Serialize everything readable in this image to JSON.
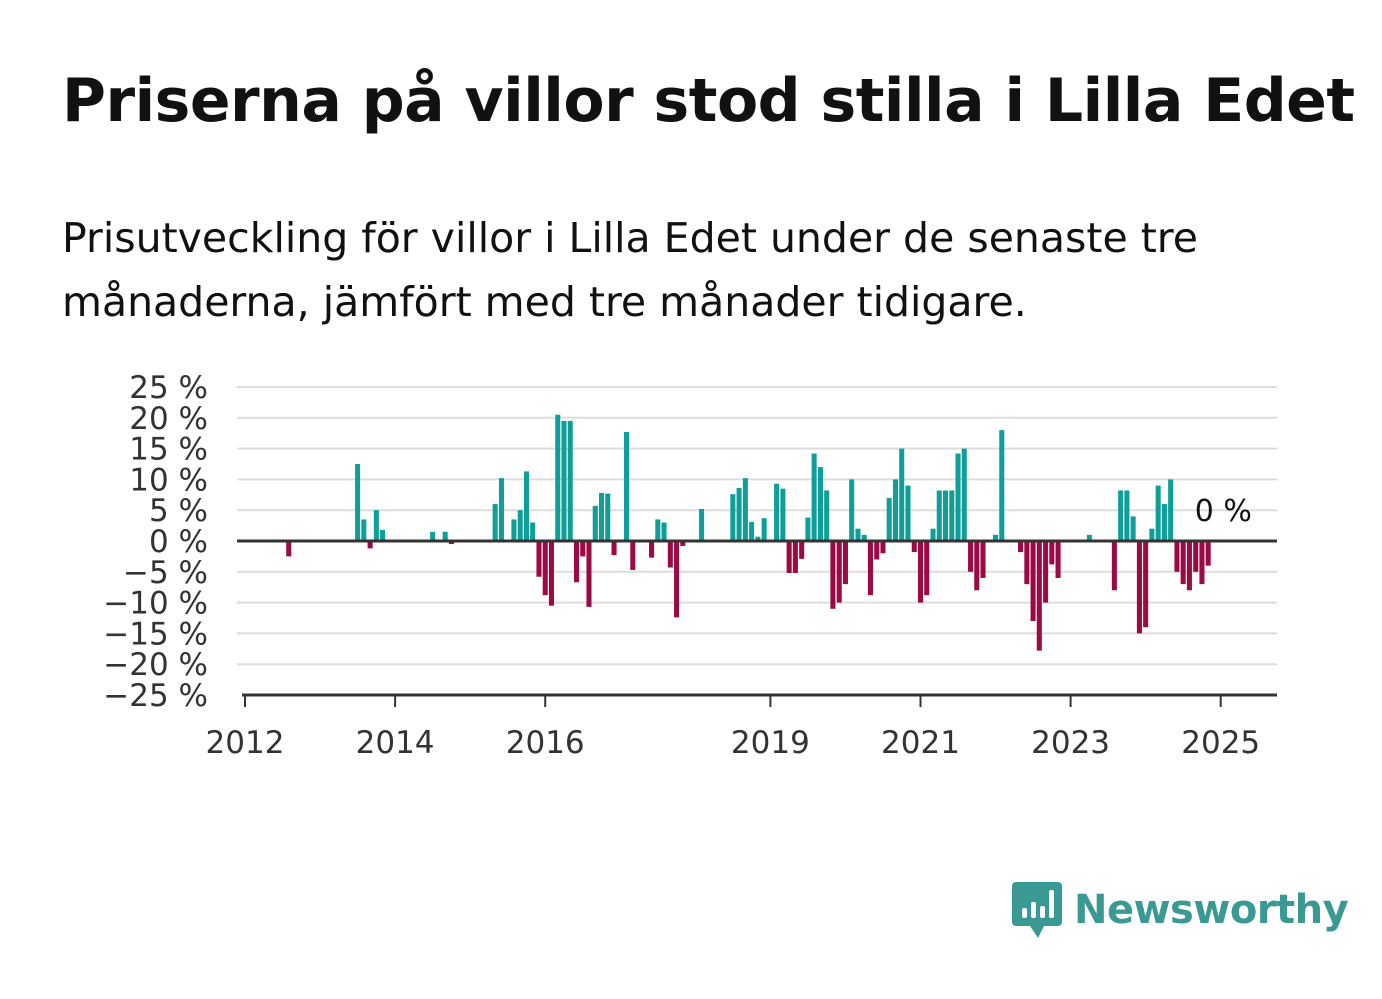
{
  "title": "Priserna på villor stod stilla i Lilla Edet",
  "subtitle": "Prisutveckling för villor i Lilla Edet under de senaste tre månaderna, jämfört med tre månader tidigare.",
  "brand": "Newsworthy",
  "colors": {
    "positive": "#109e98",
    "negative": "#9b0a45",
    "grid": "#dddddd",
    "axis": "#333333",
    "brand": "#3a9a93"
  },
  "chart_data": {
    "type": "bar",
    "ylim": [
      -25,
      25
    ],
    "y_ticks": [
      25,
      20,
      15,
      10,
      5,
      0,
      -5,
      -10,
      -15,
      -20,
      -25
    ],
    "y_tick_labels": [
      "25 %",
      "20 %",
      "15 %",
      "10 %",
      "5 %",
      "0 %",
      "−5 %",
      "−10 %",
      "−15 %",
      "−20 %",
      "−25 %"
    ],
    "x_range": [
      2012,
      2025.75
    ],
    "x_ticks": [
      2012,
      2014,
      2016,
      2019,
      2021,
      2023,
      2025
    ],
    "x_tick_labels": [
      "2012",
      "2014",
      "2016",
      "2019",
      "2021",
      "2023",
      "2025"
    ],
    "last_value_label": "0 %",
    "grid": true,
    "x": [
      2012.583,
      2013.5,
      2013.583,
      2013.667,
      2013.75,
      2013.833,
      2014.5,
      2014.667,
      2014.75,
      2015.333,
      2015.417,
      2015.583,
      2015.667,
      2015.75,
      2015.833,
      2015.917,
      2016.0,
      2016.083,
      2016.167,
      2016.25,
      2016.333,
      2016.417,
      2016.5,
      2016.583,
      2016.667,
      2016.75,
      2016.833,
      2016.917,
      2017.083,
      2017.167,
      2017.417,
      2017.5,
      2017.583,
      2017.667,
      2017.75,
      2017.833,
      2018.083,
      2018.5,
      2018.583,
      2018.667,
      2018.75,
      2018.833,
      2018.917,
      2019.083,
      2019.167,
      2019.25,
      2019.333,
      2019.417,
      2019.5,
      2019.583,
      2019.667,
      2019.75,
      2019.833,
      2019.917,
      2020.0,
      2020.083,
      2020.167,
      2020.25,
      2020.333,
      2020.417,
      2020.5,
      2020.583,
      2020.667,
      2020.75,
      2020.833,
      2020.917,
      2021.0,
      2021.083,
      2021.167,
      2021.25,
      2021.333,
      2021.417,
      2021.5,
      2021.583,
      2021.667,
      2021.75,
      2021.833,
      2022.0,
      2022.083,
      2022.333,
      2022.417,
      2022.5,
      2022.583,
      2022.667,
      2022.75,
      2022.833,
      2023.25,
      2023.583,
      2023.667,
      2023.75,
      2023.833,
      2023.917,
      2024.0,
      2024.083,
      2024.167,
      2024.25,
      2024.333,
      2024.417,
      2024.5,
      2024.583,
      2024.667,
      2024.75,
      2024.833,
      2024.917,
      2025.0
    ],
    "values": [
      -2.5,
      12.5,
      3.5,
      -1.2,
      5.0,
      1.8,
      1.5,
      1.5,
      -0.5,
      6.0,
      10.2,
      3.5,
      5.0,
      11.3,
      3.0,
      -5.8,
      -8.8,
      -10.5,
      20.5,
      19.5,
      19.5,
      -6.7,
      -2.5,
      -10.7,
      5.7,
      7.8,
      7.7,
      -2.3,
      17.7,
      -4.7,
      -2.7,
      3.5,
      3.0,
      -4.3,
      -12.4,
      -0.8,
      5.2,
      7.6,
      8.6,
      10.2,
      3.1,
      0.7,
      3.7,
      9.3,
      8.5,
      -5.2,
      -5.2,
      -2.9,
      3.8,
      14.2,
      12.0,
      8.2,
      -11.0,
      -10.0,
      -7.0,
      10.0,
      2.0,
      1.0,
      -8.8,
      -3.0,
      -2.0,
      7.0,
      10.0,
      15.0,
      9.0,
      -1.8,
      -10.0,
      -8.8,
      2.0,
      8.2,
      8.2,
      8.2,
      14.2,
      15.0,
      -5.0,
      -8.0,
      -6.0,
      1.0,
      18.0,
      -1.8,
      -7.0,
      -13.0,
      -17.8,
      -10.0,
      -3.8,
      -6.0,
      1.0,
      -8.0,
      8.2,
      8.2,
      4.0,
      -15.0,
      -14.0,
      2.0,
      9.0,
      6.0,
      10.0,
      -5.0,
      -7.0,
      -8.0,
      -5.0,
      -7.0,
      -4.0,
      0.0,
      0.0
    ]
  }
}
